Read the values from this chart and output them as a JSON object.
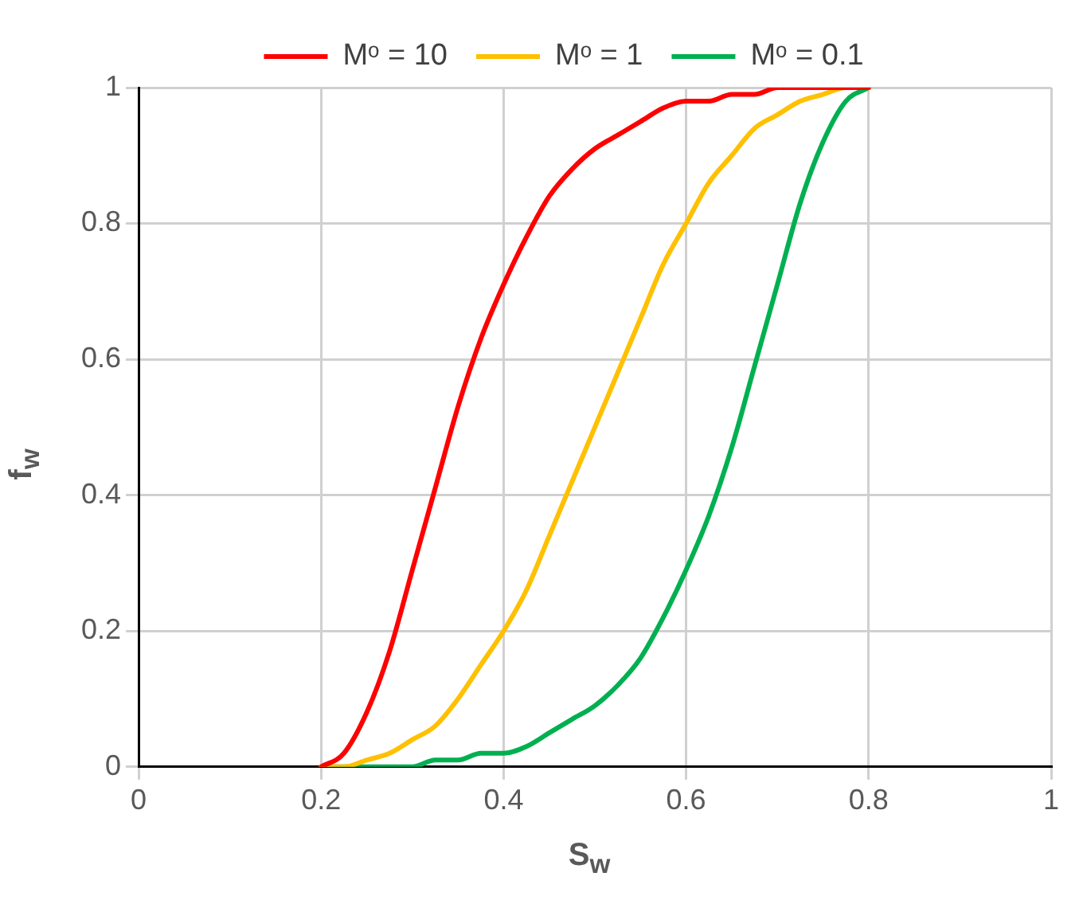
{
  "chart_data": {
    "type": "line",
    "xlabel": "S$_{w}$",
    "ylabel": "f$_{w}$",
    "x": [
      0.2,
      0.225,
      0.25,
      0.275,
      0.3,
      0.325,
      0.35,
      0.375,
      0.4,
      0.425,
      0.45,
      0.475,
      0.5,
      0.525,
      0.55,
      0.575,
      0.6,
      0.625,
      0.65,
      0.675,
      0.7,
      0.725,
      0.75,
      0.775,
      0.8
    ],
    "series": [
      {
        "name": "Mᵒ = 10",
        "color": "#ff0000",
        "values": [
          0,
          0.02,
          0.08,
          0.17,
          0.29,
          0.41,
          0.53,
          0.63,
          0.71,
          0.78,
          0.84,
          0.88,
          0.91,
          0.93,
          0.95,
          0.97,
          0.98,
          0.98,
          0.99,
          0.99,
          1,
          1,
          1,
          1,
          1
        ]
      },
      {
        "name": "Mᵒ = 1",
        "color": "#ffc000",
        "values": [
          0,
          0,
          0.01,
          0.02,
          0.04,
          0.06,
          0.1,
          0.15,
          0.2,
          0.26,
          0.34,
          0.42,
          0.5,
          0.58,
          0.66,
          0.74,
          0.8,
          0.86,
          0.9,
          0.94,
          0.96,
          0.98,
          0.99,
          1,
          1
        ]
      },
      {
        "name": "Mᵒ = 0.1",
        "color": "#00b050",
        "values": [
          0,
          0,
          0,
          0,
          0,
          0.01,
          0.01,
          0.02,
          0.02,
          0.03,
          0.05,
          0.07,
          0.09,
          0.12,
          0.16,
          0.22,
          0.29,
          0.37,
          0.47,
          0.59,
          0.71,
          0.83,
          0.92,
          0.98,
          1
        ]
      }
    ],
    "xlim": [
      0,
      1
    ],
    "xticks": [
      0,
      0.2,
      0.4,
      0.6,
      0.8,
      1
    ],
    "ylim": [
      0,
      1
    ],
    "yticks": [
      0,
      0.2,
      0.4,
      0.6,
      0.8,
      1
    ],
    "grid": true,
    "legend": "top",
    "marker": "none",
    "line_style": "solid"
  }
}
